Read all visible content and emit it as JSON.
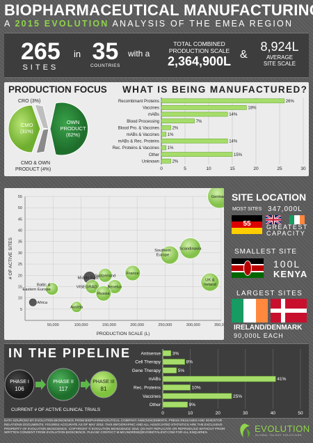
{
  "header": {
    "title": "BIOPHARMACEUTICAL MANUFACTURING",
    "subtitle_pre": "A ",
    "subtitle_hl": "2015 EVOLUTION",
    "subtitle_post": " ANALYSIS OF THE EMEA REGION"
  },
  "stats": {
    "sites_num": "265",
    "sites_lbl": "SITES",
    "in": "in",
    "countries_num": "35",
    "countries_lbl": "COUNTRIES",
    "with_a": "with a",
    "scale_lbl1": "TOTAL COMBINED",
    "scale_lbl2": "PRODUCTION SCALE",
    "scale_val": "2,364,900L",
    "amp": "&",
    "avg_val": "8,924L",
    "avg_lbl1": "AVERAGE",
    "avg_lbl2": "SITE SCALE"
  },
  "production_focus": {
    "heading": "PRODUCTION FOCUS",
    "cro": "CRO (3%)",
    "cmo1": "CMO",
    "cmo2": "(31%)",
    "own1": "OWN",
    "own2": "PRODUCT",
    "own3": "(62%)",
    "both1": "CMO & OWN",
    "both2": "PRODUCT (4%)"
  },
  "manufactured": {
    "heading": "WHAT IS BEING MANUFACTURED?"
  },
  "site_location": {
    "heading": "SITE LOCATION",
    "most_lbl": "MOST SITES",
    "most_scale": "347,000L",
    "most_sites_num": "55",
    "greatest1": "GREATEST",
    "greatest2": "CAPACITY",
    "smallest_lbl": "SMALLEST SITE",
    "smallest_val": "100L",
    "smallest_country": "KENYA",
    "largest_lbl": "LARGEST SITES",
    "largest_country": "IRELAND/DENMARK",
    "largest_val": "90,000L EACH"
  },
  "pipeline": {
    "heading": "IN THE PIPELINE",
    "p1": "PHASE I",
    "p1v": "106",
    "p2": "PHASE II",
    "p2v": "117",
    "p3": "PHASE III",
    "p3v": "81",
    "caption": "CURRENT # OF ACTIVE CLINICAL TRIALS"
  },
  "footer": {
    "text": "DATA SOURCED BY EVOLUTION BIOSCIENCE FROM BIOPHARMACEUTICAL COMPANY ANNOUNCEMENTS, PRESS RELEASES AND INVESTOR RELATIONS DOCUMENTS. FIGURES ACCURATE AS OF MAY 2015. THIS INFOGRAPHIC AND ALL ASSOCIATED STATISTICS ARE THE EXCLUSIVE PROPERTY OF EVOLUTION BIOSCIENCE. COPYRIGHT © EVOLUTION BIOSCIENCE 2015. DO NOT REPLICATE OR REPRODUCE WITHOUT PRIOR WRITTEN CONSENT FROM EVOLUTION BIOSCIENCE. PLEASE CONTACT M.MCANDREW@EVOBIOTALENT.COM FOR ALL ENQUIRIES.",
    "logo": "EVOLUTION",
    "logo_tag": "GLOBAL TALENT SOLUTIONS"
  },
  "colors": {
    "accent": "#8fd44a",
    "bar": "#8fd44a",
    "dark": "#3d3d3d",
    "panel": "#ececec"
  },
  "chart_data": [
    {
      "type": "pie",
      "categories": [
        "OWN PRODUCT",
        "CMO",
        "CRO",
        "CMO & OWN PRODUCT"
      ],
      "values": [
        62,
        31,
        3,
        4
      ]
    },
    {
      "type": "bar",
      "orientation": "horizontal",
      "title": "WHAT IS BEING MANUFACTURED?",
      "categories": [
        "Recombinant Proteins",
        "Vaccines",
        "mABs",
        "Blood Processing",
        "Blood Pro. & Vaccines",
        "mABs & Vaccines",
        "mABs & Rec. Proteins",
        "Rec. Proteins & Vaccines",
        "Other",
        "Unknown"
      ],
      "values": [
        26,
        18,
        14,
        7,
        2,
        1,
        14,
        1,
        15,
        2
      ],
      "labels": [
        "26%",
        "18%",
        "14%",
        "7%",
        "2%",
        "1%",
        "14%",
        "1%",
        "15%",
        "2%"
      ],
      "xlim": [
        0,
        30
      ],
      "xticks": [
        "0",
        "5",
        "10",
        "15",
        "20",
        "25",
        "30"
      ]
    },
    {
      "type": "scatter",
      "xlabel": "PRODUCTION SCALE (L)",
      "ylabel": "# OF ACTIVE SITES",
      "xlim": [
        0,
        350000
      ],
      "ylim": [
        0,
        55
      ],
      "xticks": [
        "50,000",
        "100,000",
        "150,000",
        "200,000",
        "250,000",
        "300,000",
        "350,000"
      ],
      "yticks": [
        "5",
        "10",
        "15",
        "20",
        "25",
        "30",
        "35",
        "40",
        "45",
        "50",
        "55"
      ],
      "points": [
        {
          "name": "Germany",
          "x": 347000,
          "y": 55,
          "r": 17
        },
        {
          "name": "Scandinavia",
          "x": 295000,
          "y": 32,
          "r": 15
        },
        {
          "name": "Southern Europe",
          "x": 258000,
          "y": 29,
          "r": 13
        },
        {
          "name": "UK & Ireland",
          "x": 330000,
          "y": 17,
          "r": 13
        },
        {
          "name": "France",
          "x": 192000,
          "y": 21,
          "r": 11
        },
        {
          "name": "Switzerland",
          "x": 143000,
          "y": 20,
          "r": 10
        },
        {
          "name": "Middle East",
          "x": 115000,
          "y": 19,
          "r": 9
        },
        {
          "name": "VISEGRAD",
          "x": 120000,
          "y": 15,
          "r": 10
        },
        {
          "name": "Benelux",
          "x": 160000,
          "y": 15,
          "r": 10
        },
        {
          "name": "Russia",
          "x": 140000,
          "y": 12,
          "r": 11
        },
        {
          "name": "Baltic & Eastern Europe",
          "x": 48000,
          "y": 14,
          "r": 9
        },
        {
          "name": "Austria",
          "x": 92000,
          "y": 6,
          "r": 8
        },
        {
          "name": "Africa",
          "x": 14000,
          "y": 8,
          "r": 6
        }
      ]
    },
    {
      "type": "bar",
      "orientation": "horizontal",
      "categories": [
        "Antisense",
        "Cell Therapy",
        "Gene Therapy",
        "mABs",
        "Rec. Proteins",
        "Vaccines",
        "Other"
      ],
      "values": [
        3,
        8,
        5,
        41,
        10,
        25,
        9
      ],
      "labels": [
        "3%",
        "8%",
        "5%",
        "41%",
        "10%",
        "25%",
        "9%"
      ],
      "xlim": [
        0,
        50
      ],
      "xticks": [
        "0",
        "10",
        "20",
        "30",
        "40",
        "50"
      ]
    }
  ]
}
